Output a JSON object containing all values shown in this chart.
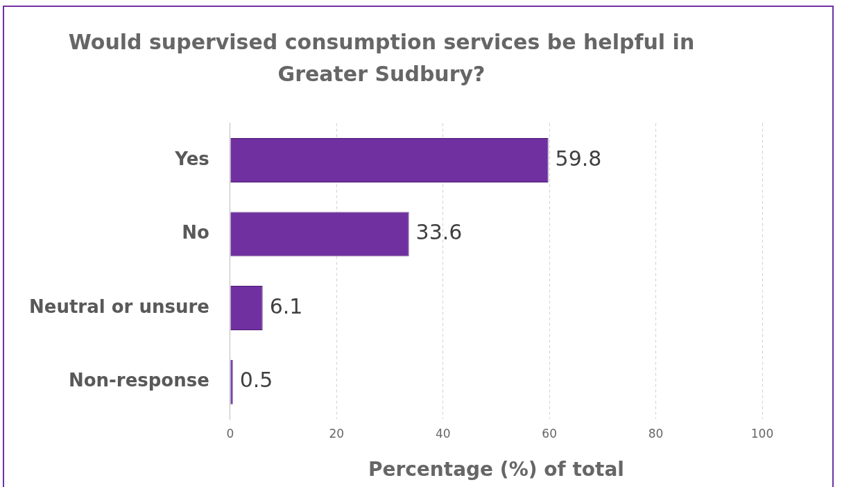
{
  "chart_data": {
    "type": "bar",
    "orientation": "horizontal",
    "title": "Would supervised consumption services be helpful in Greater Sudbury?",
    "xlabel": "Percentage (%) of total",
    "categories": [
      "Yes",
      "No",
      "Neutral or unsure",
      "Non-response"
    ],
    "values": [
      59.8,
      33.6,
      6.1,
      0.5
    ],
    "color": "#7030a0",
    "xlim": [
      0,
      100
    ],
    "xticks": [
      0,
      20,
      40,
      60,
      80,
      100
    ],
    "grid": "x",
    "data_labels": true,
    "legend": false
  }
}
